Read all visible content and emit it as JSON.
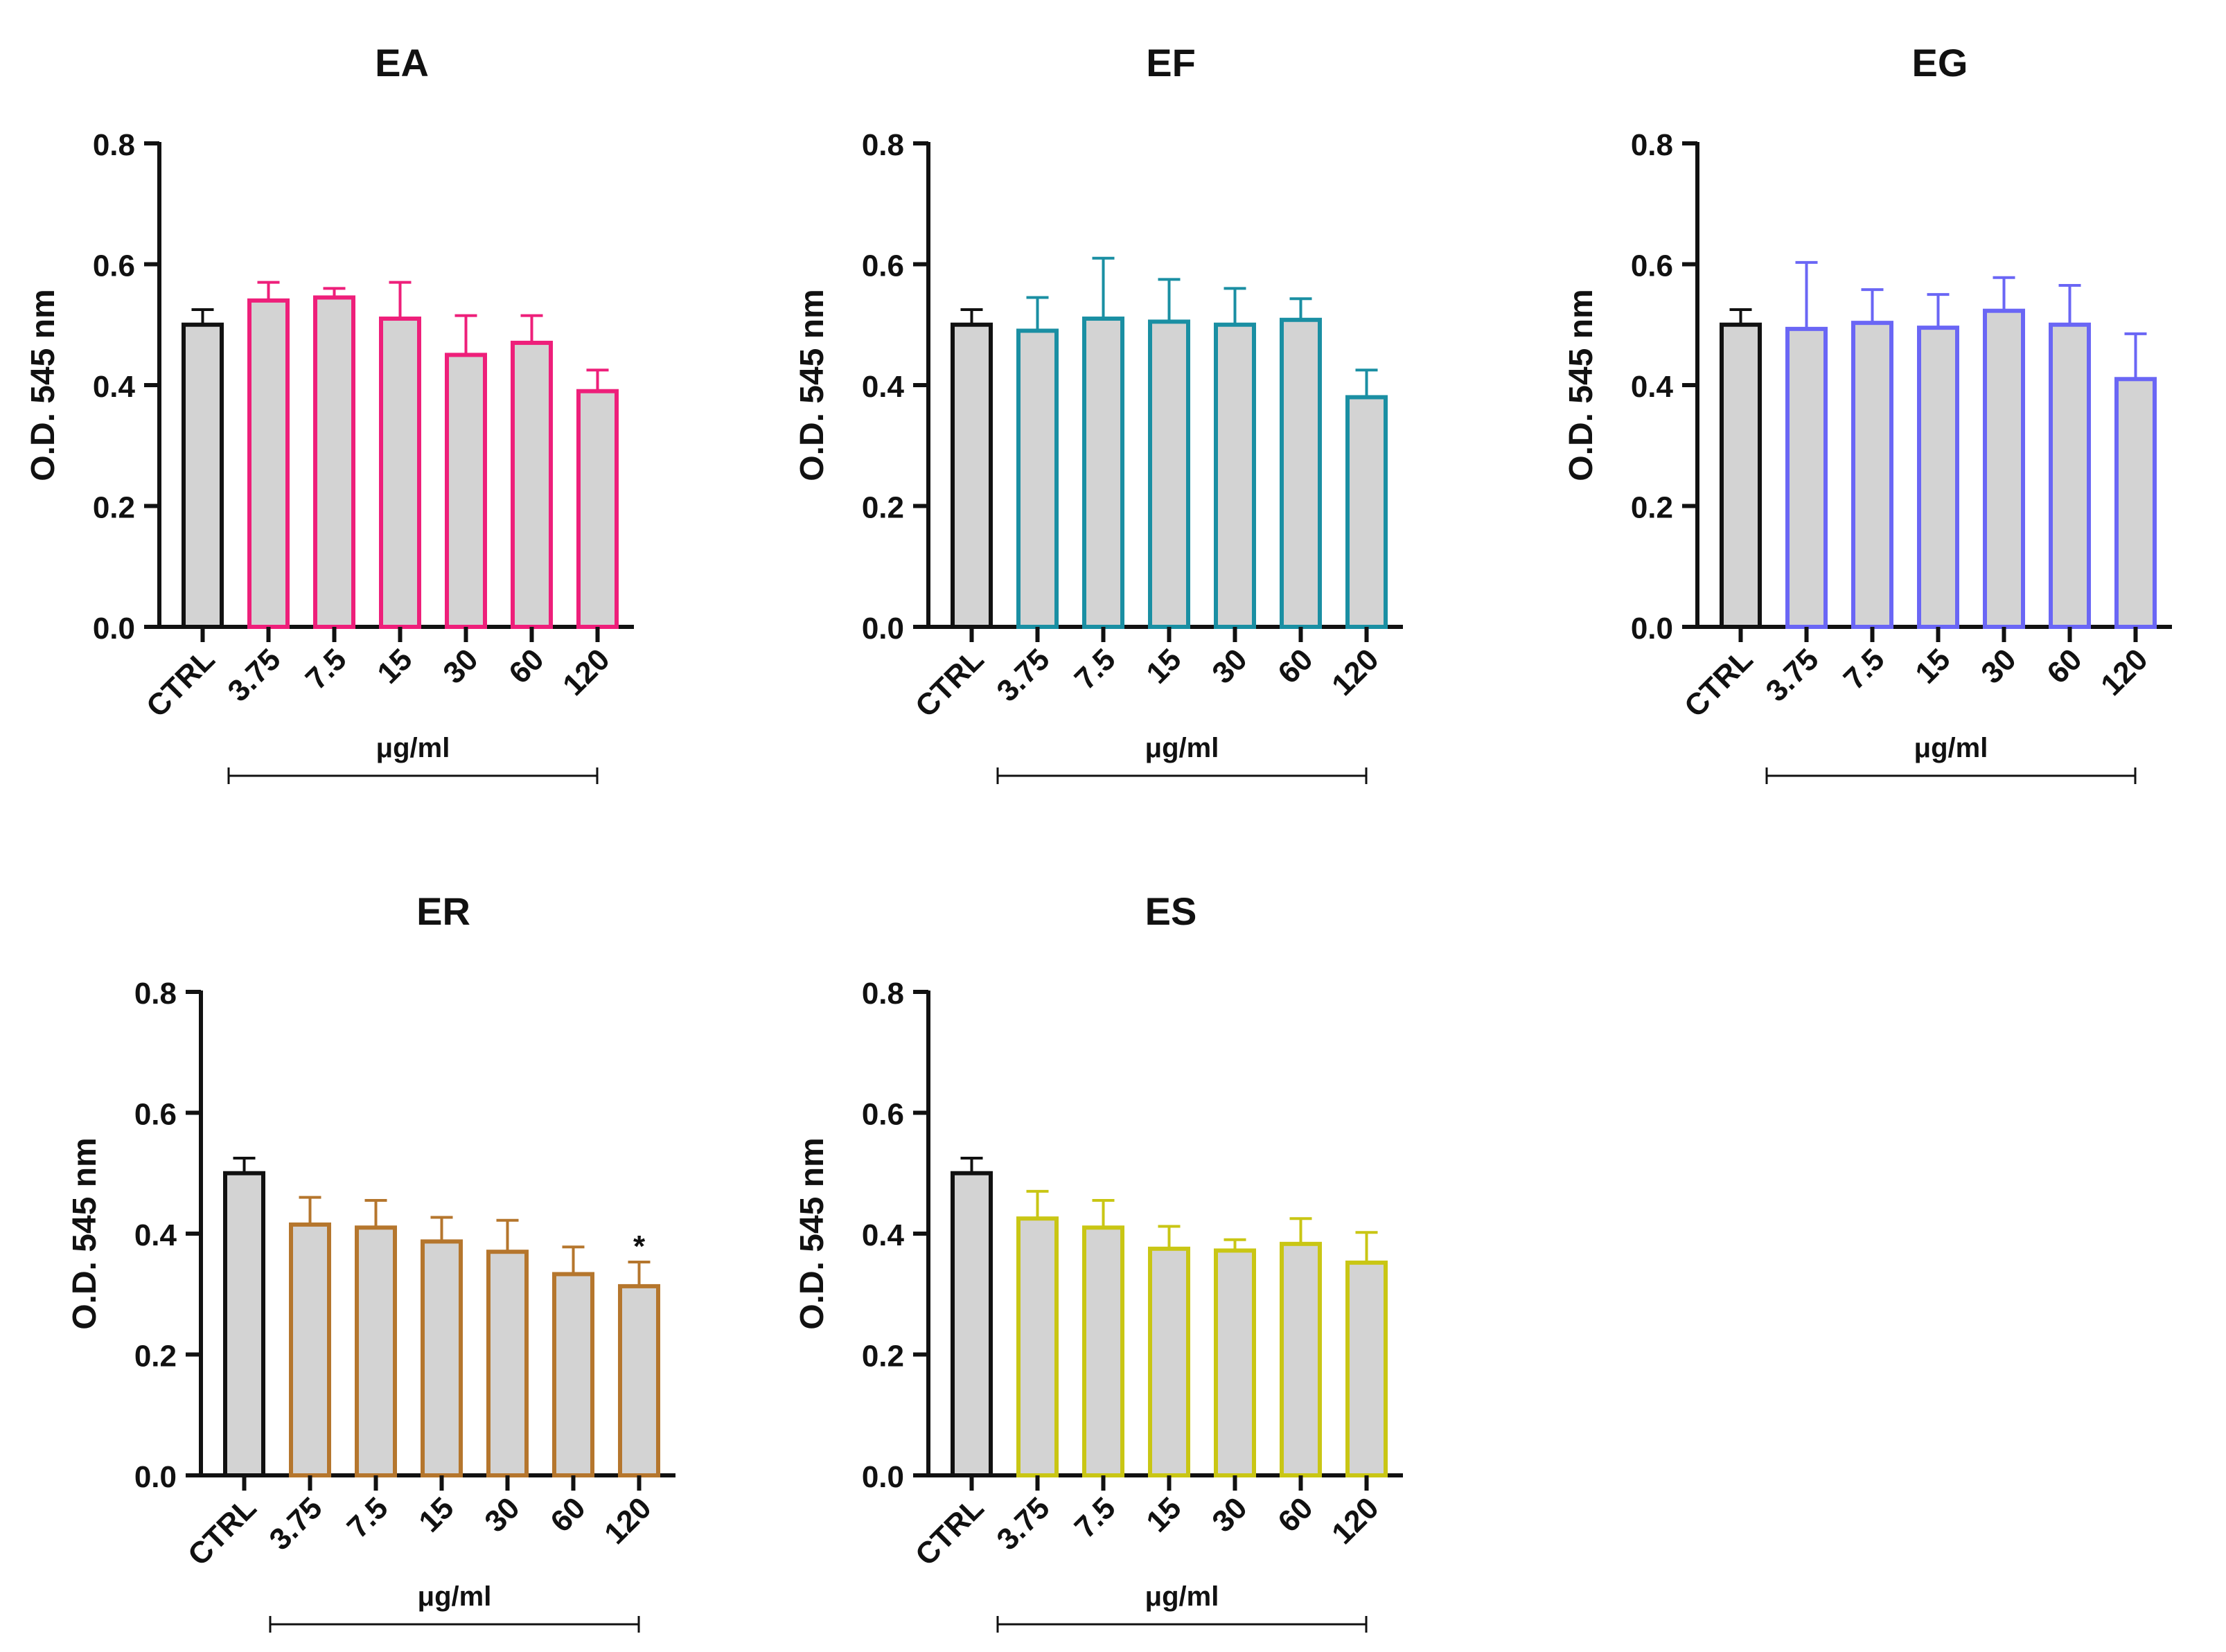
{
  "figure": {
    "colors": {
      "axis": "#111111",
      "bar_fill": "#d3d3d3",
      "ctrl_edge": "#111111"
    },
    "bracket_label": "μg/ml"
  },
  "chart_data": [
    {
      "type": "bar",
      "title": "EA",
      "ylabel": "O.D. 545 nm",
      "xlabel": "",
      "ylim": [
        0,
        0.8
      ],
      "yticks": [
        "0.0",
        "0.2",
        "0.4",
        "0.6",
        "0.8"
      ],
      "categories": [
        "CTRL",
        "3.75",
        "7.5",
        "15",
        "30",
        "60",
        "120"
      ],
      "values": [
        0.5,
        0.54,
        0.545,
        0.51,
        0.45,
        0.47,
        0.39
      ],
      "errors": [
        0.025,
        0.03,
        0.015,
        0.06,
        0.065,
        0.045,
        0.035
      ],
      "annotations": [
        "",
        "",
        "",
        "",
        "",
        "",
        ""
      ],
      "group_label": "μg/ml",
      "edge_color": "#ee1f7a"
    },
    {
      "type": "bar",
      "title": "EF",
      "ylabel": "O.D. 545 nm",
      "xlabel": "",
      "ylim": [
        0,
        0.8
      ],
      "yticks": [
        "0.0",
        "0.2",
        "0.4",
        "0.6",
        "0.8"
      ],
      "categories": [
        "CTRL",
        "3.75",
        "7.5",
        "15",
        "30",
        "60",
        "120"
      ],
      "values": [
        0.5,
        0.49,
        0.51,
        0.505,
        0.5,
        0.508,
        0.38
      ],
      "errors": [
        0.025,
        0.055,
        0.1,
        0.07,
        0.06,
        0.035,
        0.045
      ],
      "annotations": [
        "",
        "",
        "",
        "",
        "",
        "",
        ""
      ],
      "group_label": "μg/ml",
      "edge_color": "#1a8fa3"
    },
    {
      "type": "bar",
      "title": "EG",
      "ylabel": "O.D. 545 nm",
      "xlabel": "",
      "ylim": [
        0,
        0.8
      ],
      "yticks": [
        "0.0",
        "0.2",
        "0.4",
        "0.6",
        "0.8"
      ],
      "categories": [
        "CTRL",
        "3.75",
        "7.5",
        "15",
        "30",
        "60",
        "120"
      ],
      "values": [
        0.5,
        0.493,
        0.503,
        0.495,
        0.523,
        0.5,
        0.41
      ],
      "errors": [
        0.025,
        0.11,
        0.055,
        0.055,
        0.055,
        0.065,
        0.075
      ],
      "annotations": [
        "",
        "",
        "",
        "",
        "",
        "",
        ""
      ],
      "group_label": "μg/ml",
      "edge_color": "#6a66f5"
    },
    {
      "type": "bar",
      "title": "ER",
      "ylabel": "O.D. 545 nm",
      "xlabel": "",
      "ylim": [
        0,
        0.8
      ],
      "yticks": [
        "0.0",
        "0.2",
        "0.4",
        "0.6",
        "0.8"
      ],
      "categories": [
        "CTRL",
        "3.75",
        "7.5",
        "15",
        "30",
        "60",
        "120"
      ],
      "values": [
        0.5,
        0.415,
        0.41,
        0.387,
        0.37,
        0.333,
        0.313
      ],
      "errors": [
        0.025,
        0.045,
        0.045,
        0.04,
        0.052,
        0.045,
        0.04
      ],
      "annotations": [
        "",
        "",
        "",
        "",
        "",
        "",
        "*"
      ],
      "group_label": "μg/ml",
      "edge_color": "#b5762d"
    },
    {
      "type": "bar",
      "title": "ES",
      "ylabel": "O.D. 545 nm",
      "xlabel": "",
      "ylim": [
        0,
        0.8
      ],
      "yticks": [
        "0.0",
        "0.2",
        "0.4",
        "0.6",
        "0.8"
      ],
      "categories": [
        "CTRL",
        "3.75",
        "7.5",
        "15",
        "30",
        "60",
        "120"
      ],
      "values": [
        0.5,
        0.425,
        0.41,
        0.375,
        0.372,
        0.383,
        0.352
      ],
      "errors": [
        0.025,
        0.045,
        0.045,
        0.037,
        0.018,
        0.042,
        0.05
      ],
      "annotations": [
        "",
        "",
        "",
        "",
        "",
        "",
        ""
      ],
      "group_label": "μg/ml",
      "edge_color": "#c9c614"
    }
  ]
}
